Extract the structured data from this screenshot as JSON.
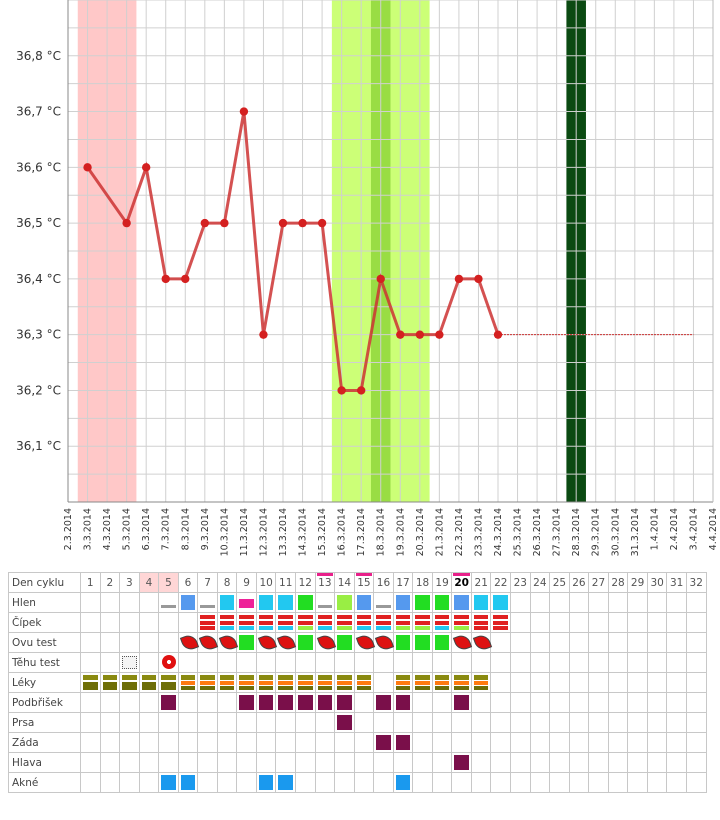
{
  "chart_data": {
    "type": "line",
    "ylabel": "",
    "xlabel": "",
    "ylim": [
      36.0,
      36.9
    ],
    "y_ticks": [
      "36,1 °C",
      "36,2 °C",
      "36,3 °C",
      "36,4 °C",
      "36,5 °C",
      "36,6 °C",
      "36,7 °C",
      "36,8 °C"
    ],
    "y_tick_values": [
      36.1,
      36.2,
      36.3,
      36.4,
      36.5,
      36.6,
      36.7,
      36.8
    ],
    "x_dates": [
      "2.3.2014",
      "3.3.2014",
      "4.3.2014",
      "5.3.2014",
      "6.3.2014",
      "7.3.2014",
      "8.3.2014",
      "9.3.2014",
      "10.3.2014",
      "11.3.2014",
      "12.3.2014",
      "13.3.2014",
      "14.3.2014",
      "15.3.2014",
      "16.3.2014",
      "17.3.2014",
      "18.3.2014",
      "19.3.2014",
      "20.3.2014",
      "21.3.2014",
      "22.3.2014",
      "23.3.2014",
      "24.3.2014",
      "25.3.2014",
      "26.3.2014",
      "27.3.2014",
      "28.3.2014",
      "29.3.2014",
      "30.3.2014",
      "31.3.2014",
      "1.4.2014",
      "2.4.2014",
      "3.4.2014",
      "4.4.2014"
    ],
    "series": [
      {
        "points": [
          {
            "x": "3.3.2014",
            "y": 36.6
          },
          {
            "x": "5.3.2014",
            "y": 36.5
          },
          {
            "x": "6.3.2014",
            "y": 36.6
          },
          {
            "x": "7.3.2014",
            "y": 36.4
          },
          {
            "x": "8.3.2014",
            "y": 36.4
          },
          {
            "x": "9.3.2014",
            "y": 36.5
          },
          {
            "x": "10.3.2014",
            "y": 36.5
          },
          {
            "x": "11.3.2014",
            "y": 36.7
          },
          {
            "x": "12.3.2014",
            "y": 36.3
          },
          {
            "x": "13.3.2014",
            "y": 36.5
          },
          {
            "x": "14.3.2014",
            "y": 36.5
          },
          {
            "x": "15.3.2014",
            "y": 36.5
          },
          {
            "x": "16.3.2014",
            "y": 36.2
          },
          {
            "x": "17.3.2014",
            "y": 36.2
          },
          {
            "x": "18.3.2014",
            "y": 36.4
          },
          {
            "x": "19.3.2014",
            "y": 36.3
          },
          {
            "x": "20.3.2014",
            "y": 36.3
          },
          {
            "x": "21.3.2014",
            "y": 36.3
          },
          {
            "x": "22.3.2014",
            "y": 36.4
          },
          {
            "x": "23.3.2014",
            "y": 36.4
          },
          {
            "x": "24.3.2014",
            "y": 36.3
          }
        ]
      }
    ],
    "cover_line": {
      "from": "24.3.2014",
      "to": "3.4.2014",
      "y": 36.3
    },
    "bands": [
      {
        "kind": "menstruation",
        "from": "2.3.2014",
        "to": "5.3.2014",
        "color": "#ffc8c8"
      },
      {
        "kind": "fertile",
        "from": "15.3.2014",
        "to": "20.3.2014",
        "color": "#ccff77"
      },
      {
        "kind": "fertile-peak",
        "from": "17.3.2014",
        "to": "18.3.2014",
        "color": "#99dd44"
      },
      {
        "kind": "expected",
        "from": "27.3.2014",
        "to": "28.3.2014",
        "color": "#0b4a12"
      }
    ],
    "colors": {
      "line": "#cc3333",
      "point": "#d42020",
      "grid": "#cccccc"
    },
    "grid": true
  },
  "table": {
    "header_label": "Den cyklu",
    "days": [
      "1",
      "2",
      "3",
      "4",
      "5",
      "6",
      "7",
      "8",
      "9",
      "10",
      "11",
      "12",
      "13",
      "14",
      "15",
      "16",
      "17",
      "18",
      "19",
      "20",
      "21",
      "22",
      "23",
      "24",
      "25",
      "26",
      "27",
      "28",
      "29",
      "30",
      "31",
      "32"
    ],
    "highlight_days": [
      4,
      5
    ],
    "pink_days": [
      13,
      15,
      20
    ],
    "today": 20,
    "rows": [
      {
        "label": "Hlen",
        "cells": {
          "5": "thin",
          "6": "blue",
          "7": "thin",
          "8": "cyan",
          "9": "pink",
          "10": "cyan",
          "11": "cyan",
          "12": "green",
          "13": "thin",
          "14": "lime",
          "15": "blue",
          "16": "thin",
          "17": "blue",
          "18": "green",
          "19": "green",
          "20": "blue",
          "21": "cyan",
          "22": "cyan"
        }
      },
      {
        "label": "Čípek",
        "cells": {
          "7": "redstack",
          "8": "redcyan",
          "9": "redcyan",
          "10": "redcyan",
          "11": "redcyan",
          "12": "redlime",
          "13": "redcyan",
          "14": "redlime",
          "15": "redcyan",
          "16": "redcyan",
          "17": "redlime",
          "18": "redlime",
          "19": "redcyan",
          "20": "redlime",
          "21": "redstack",
          "22": "redstack"
        }
      },
      {
        "label": "Ovu test",
        "cells": {
          "6": "red",
          "7": "red",
          "8": "red",
          "9": "green",
          "10": "red",
          "11": "red",
          "12": "green",
          "13": "red",
          "14": "green",
          "15": "red",
          "16": "red",
          "17": "green",
          "18": "green",
          "19": "green",
          "20": "red",
          "21": "red"
        }
      },
      {
        "label": "Těhu test",
        "cells": {
          "3": "negtest",
          "5": "flower"
        }
      },
      {
        "label": "Léky",
        "cells": {
          "1": "olive",
          "2": "olive",
          "3": "olive",
          "4": "olive",
          "5": "olive",
          "6": "oliveorange",
          "7": "oliveorange",
          "8": "oliveorange",
          "9": "oliveorange",
          "10": "oliveorange",
          "11": "oliveorange",
          "12": "oliveorange",
          "13": "oliveorange",
          "14": "oliveorange",
          "15": "oliveorange",
          "17": "oliveorange",
          "18": "oliveorange",
          "19": "oliveorange",
          "20": "oliveorange",
          "21": "oliveorange"
        }
      },
      {
        "label": "Podbřišek",
        "cells": {
          "5": "plum",
          "9": "plum",
          "10": "plum",
          "11": "plum",
          "12": "plum",
          "13": "plum",
          "14": "plum",
          "16": "plum",
          "17": "plum",
          "20": "plum"
        }
      },
      {
        "label": "Prsa",
        "cells": {
          "14": "plum"
        }
      },
      {
        "label": "Záda",
        "cells": {
          "16": "plum",
          "17": "plum"
        }
      },
      {
        "label": "Hlava",
        "cells": {
          "20": "plum"
        }
      },
      {
        "label": "Akné",
        "cells": {
          "5": "azure",
          "6": "azure",
          "10": "azure",
          "11": "azure",
          "17": "azure"
        }
      }
    ]
  }
}
